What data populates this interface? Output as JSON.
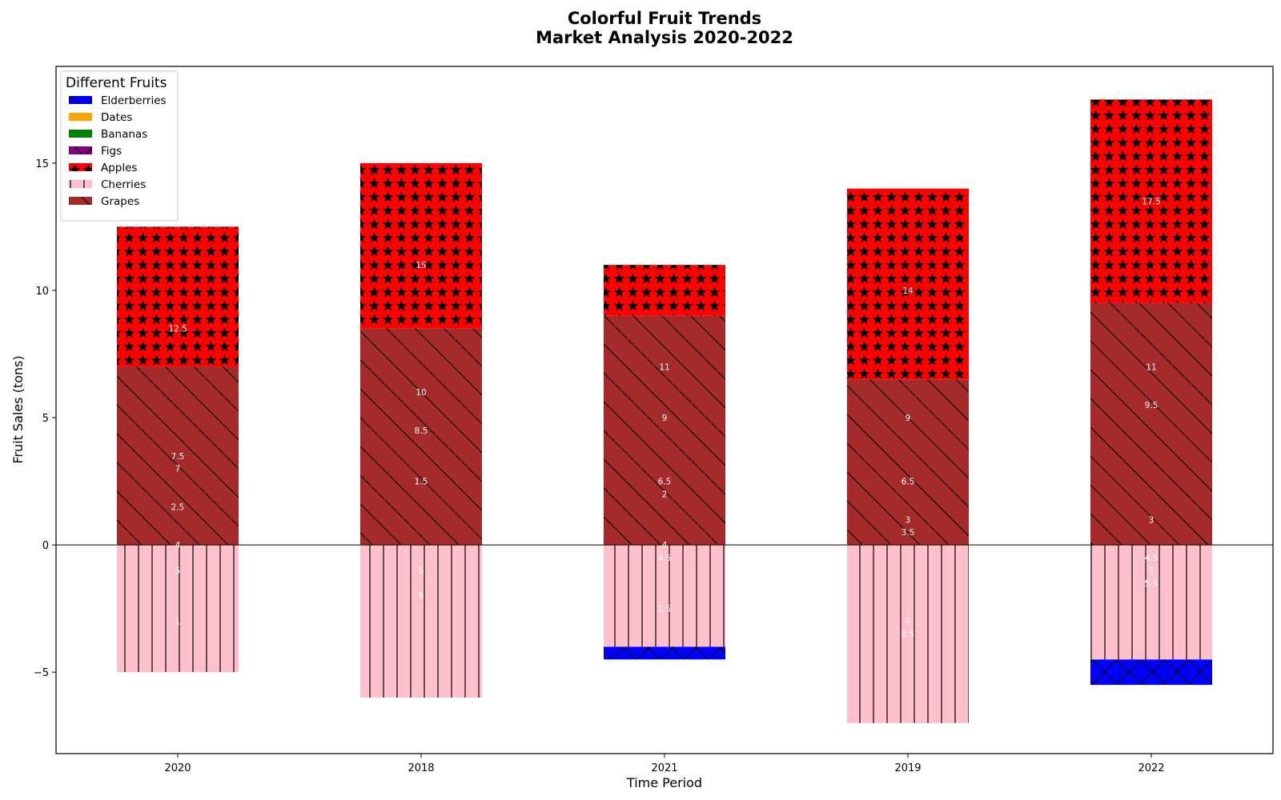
{
  "chart_data": {
    "type": "bar",
    "stacked": true,
    "title": "Colorful Fruit Trends\nMarket Analysis 2020-2022",
    "xlabel": "Time Period",
    "ylabel": "Fruit Sales (tons)",
    "categories": [
      "2020",
      "2018",
      "2021",
      "2019",
      "2022"
    ],
    "ylim": [
      -8.2,
      18.8
    ],
    "yticks": [
      -5,
      0,
      5,
      10,
      15
    ],
    "ytick_labels": [
      "−5",
      "0",
      "5",
      "10",
      "15"
    ],
    "zero_line": true,
    "grid": false,
    "legend": {
      "title": "Different Fruits",
      "placement": "top-left"
    },
    "series": [
      {
        "name": "Elderberries",
        "color": "#0000ff",
        "hatch": "x",
        "bottoms": [
          0,
          0,
          -4,
          0,
          -4.5
        ],
        "tops": [
          0,
          0,
          -4.5,
          0,
          -5.5
        ]
      },
      {
        "name": "Dates",
        "color": "#ffa500",
        "hatch": "",
        "bottoms": [
          0,
          0,
          0,
          0,
          0
        ],
        "tops": [
          0,
          0,
          0,
          0,
          0
        ]
      },
      {
        "name": "Bananas",
        "color": "#008000",
        "hatch": "",
        "bottoms": [
          0,
          0,
          0,
          0,
          0
        ],
        "tops": [
          0,
          0,
          0,
          0,
          0
        ]
      },
      {
        "name": "Figs",
        "color": "#800080",
        "hatch": "x",
        "bottoms": [
          0,
          0,
          0,
          0,
          0
        ],
        "tops": [
          0,
          0,
          0,
          0,
          0
        ]
      },
      {
        "name": "Apples",
        "color": "#ff0000",
        "hatch": "*",
        "bottoms": [
          7,
          8.5,
          9,
          6.5,
          9.5
        ],
        "tops": [
          12.5,
          15,
          11,
          14,
          17.5
        ]
      },
      {
        "name": "Cherries",
        "color": "#ffc0cb",
        "hatch": "|",
        "bottoms": [
          0,
          0,
          0,
          0,
          0
        ],
        "tops": [
          -5,
          -6,
          -4,
          -7,
          -4.5
        ]
      },
      {
        "name": "Grapes",
        "color": "#a52a2a",
        "hatch": "\\",
        "bottoms": [
          0,
          0,
          0,
          0,
          0
        ],
        "tops": [
          7,
          8.5,
          9,
          6.5,
          9.5
        ]
      }
    ],
    "bar_labels": [
      [
        {
          "text": "12.5",
          "y": 8.5
        },
        {
          "text": "7.5",
          "y": 3.5
        },
        {
          "text": "7",
          "y": 3
        },
        {
          "text": "2.5",
          "y": 1.5
        },
        {
          "text": "4",
          "y": 0
        },
        {
          "text": "5",
          "y": -1
        },
        {
          "text": "1",
          "y": -3
        }
      ],
      [
        {
          "text": "15",
          "y": 11
        },
        {
          "text": "10",
          "y": 6
        },
        {
          "text": "8.5",
          "y": 4.5
        },
        {
          "text": "1.5",
          "y": 2.5
        },
        {
          "text": "5",
          "y": -1
        },
        {
          "text": "6",
          "y": -2
        }
      ],
      [
        {
          "text": "11",
          "y": 7
        },
        {
          "text": "9",
          "y": 5
        },
        {
          "text": "6.5",
          "y": 2.5
        },
        {
          "text": "2",
          "y": 2
        },
        {
          "text": "4",
          "y": 0
        },
        {
          "text": "4.5",
          "y": -0.5
        },
        {
          "text": "1.5",
          "y": -2.5
        }
      ],
      [
        {
          "text": "14",
          "y": 10
        },
        {
          "text": "9",
          "y": 5
        },
        {
          "text": "6.5",
          "y": 2.5
        },
        {
          "text": "3",
          "y": 1
        },
        {
          "text": "3.5",
          "y": 0.5
        },
        {
          "text": "7",
          "y": -3
        },
        {
          "text": "0.5",
          "y": -3.5
        }
      ],
      [
        {
          "text": "17.5",
          "y": 13.5
        },
        {
          "text": "11",
          "y": 7
        },
        {
          "text": "9.5",
          "y": 5.5
        },
        {
          "text": "3",
          "y": 1
        },
        {
          "text": "4.5",
          "y": -0.5
        },
        {
          "text": "3",
          "y": -1
        },
        {
          "text": "5.5",
          "y": -1.5
        }
      ]
    ]
  }
}
